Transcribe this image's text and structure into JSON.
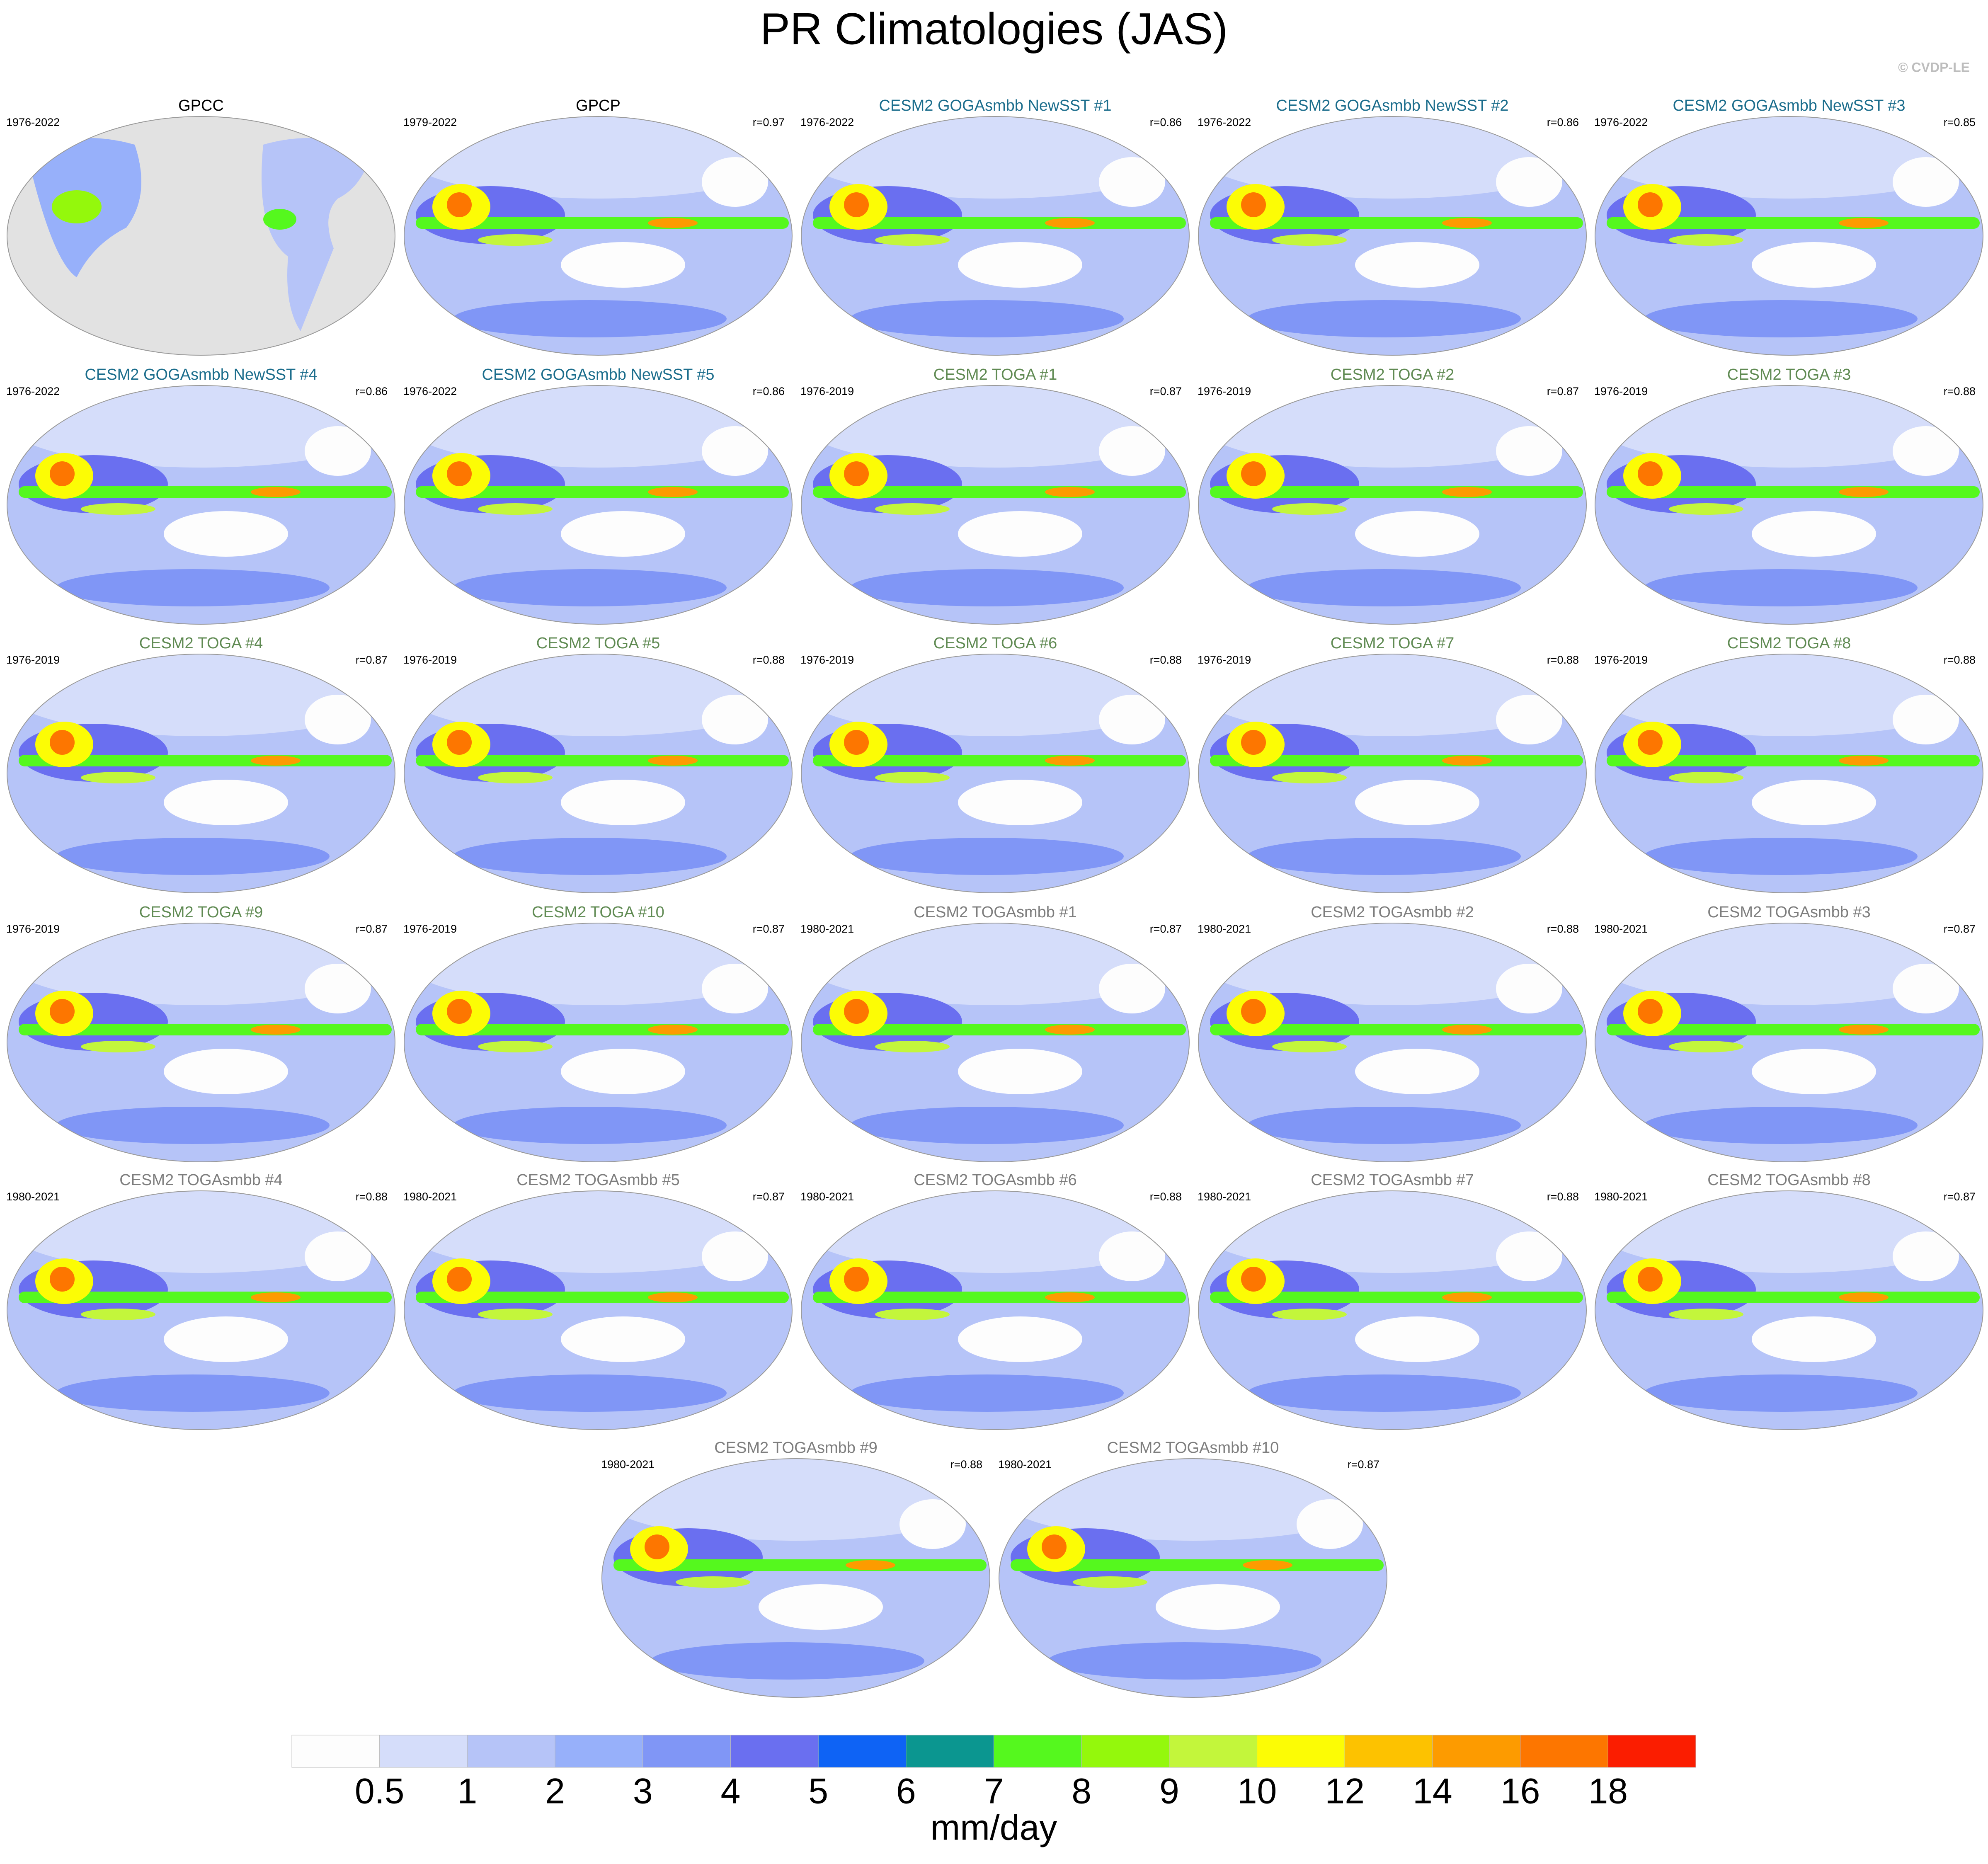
{
  "header": {
    "title": "PR Climatologies (JAS)",
    "credit": "© CVDP-LE"
  },
  "panels": [
    {
      "title": "GPCC",
      "period": "1976-2022",
      "title_color": "#000000",
      "observed_land_only": true
    },
    {
      "title": "GPCP",
      "period": "1979-2022",
      "r": "r=0.97",
      "title_color": "#000000"
    },
    {
      "title": "CESM2 GOGAsmbb NewSST #1",
      "period": "1976-2022",
      "r": "r=0.86",
      "title_color": "#1b6d8c"
    },
    {
      "title": "CESM2 GOGAsmbb NewSST #2",
      "period": "1976-2022",
      "r": "r=0.86",
      "title_color": "#1b6d8c"
    },
    {
      "title": "CESM2 GOGAsmbb NewSST #3",
      "period": "1976-2022",
      "r": "r=0.85",
      "title_color": "#1b6d8c"
    },
    {
      "title": "CESM2 GOGAsmbb NewSST #4",
      "period": "1976-2022",
      "r": "r=0.86",
      "title_color": "#1b6d8c"
    },
    {
      "title": "CESM2 GOGAsmbb NewSST #5",
      "period": "1976-2022",
      "r": "r=0.86",
      "title_color": "#1b6d8c"
    },
    {
      "title": "CESM2 TOGA #1",
      "period": "1976-2019",
      "r": "r=0.87",
      "title_color": "#5f8a52"
    },
    {
      "title": "CESM2 TOGA #2",
      "period": "1976-2019",
      "r": "r=0.87",
      "title_color": "#5f8a52"
    },
    {
      "title": "CESM2 TOGA #3",
      "period": "1976-2019",
      "r": "r=0.88",
      "title_color": "#5f8a52"
    },
    {
      "title": "CESM2 TOGA #4",
      "period": "1976-2019",
      "r": "r=0.87",
      "title_color": "#5f8a52"
    },
    {
      "title": "CESM2 TOGA #5",
      "period": "1976-2019",
      "r": "r=0.88",
      "title_color": "#5f8a52"
    },
    {
      "title": "CESM2 TOGA #6",
      "period": "1976-2019",
      "r": "r=0.88",
      "title_color": "#5f8a52"
    },
    {
      "title": "CESM2 TOGA #7",
      "period": "1976-2019",
      "r": "r=0.88",
      "title_color": "#5f8a52"
    },
    {
      "title": "CESM2 TOGA #8",
      "period": "1976-2019",
      "r": "r=0.88",
      "title_color": "#5f8a52"
    },
    {
      "title": "CESM2 TOGA #9",
      "period": "1976-2019",
      "r": "r=0.87",
      "title_color": "#5f8a52"
    },
    {
      "title": "CESM2 TOGA #10",
      "period": "1976-2019",
      "r": "r=0.87",
      "title_color": "#5f8a52"
    },
    {
      "title": "CESM2 TOGAsmbb #1",
      "period": "1980-2021",
      "r": "r=0.87",
      "title_color": "#7d7d7d"
    },
    {
      "title": "CESM2 TOGAsmbb #2",
      "period": "1980-2021",
      "r": "r=0.88",
      "title_color": "#7d7d7d"
    },
    {
      "title": "CESM2 TOGAsmbb #3",
      "period": "1980-2021",
      "r": "r=0.87",
      "title_color": "#7d7d7d"
    },
    {
      "title": "CESM2 TOGAsmbb #4",
      "period": "1980-2021",
      "r": "r=0.88",
      "title_color": "#7d7d7d"
    },
    {
      "title": "CESM2 TOGAsmbb #5",
      "period": "1980-2021",
      "r": "r=0.87",
      "title_color": "#7d7d7d"
    },
    {
      "title": "CESM2 TOGAsmbb #6",
      "period": "1980-2021",
      "r": "r=0.88",
      "title_color": "#7d7d7d"
    },
    {
      "title": "CESM2 TOGAsmbb #7",
      "period": "1980-2021",
      "r": "r=0.88",
      "title_color": "#7d7d7d"
    },
    {
      "title": "CESM2 TOGAsmbb #8",
      "period": "1980-2021",
      "r": "r=0.87",
      "title_color": "#7d7d7d"
    },
    {
      "title": "CESM2 TOGAsmbb #9",
      "period": "1980-2021",
      "r": "r=0.88",
      "title_color": "#7d7d7d"
    },
    {
      "title": "CESM2 TOGAsmbb #10",
      "period": "1980-2021",
      "r": "r=0.87",
      "title_color": "#7d7d7d"
    }
  ],
  "colorbar": {
    "label": "mm/day",
    "ticks": [
      0.5,
      1,
      2,
      3,
      4,
      5,
      6,
      7,
      8,
      9,
      10,
      12,
      14,
      16,
      18
    ],
    "colors": [
      "#fdfdfd",
      "#d5ddfa",
      "#b6c4f8",
      "#97b0fa",
      "#8096f6",
      "#6a6ff0",
      "#0e63f5",
      "#0b9690",
      "#55f81e",
      "#94f80c",
      "#c3f63b",
      "#fcfc05",
      "#fdc200",
      "#fd9b00",
      "#fd7600",
      "#fb1d00"
    ]
  }
}
